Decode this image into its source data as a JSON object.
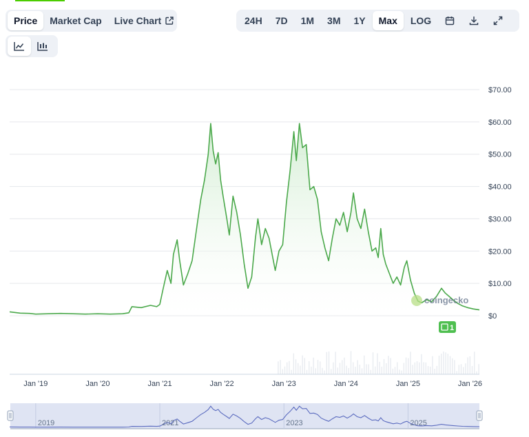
{
  "tabs": [
    {
      "label": "Price",
      "active": true
    },
    {
      "label": "Market Cap",
      "active": false
    },
    {
      "label": "Live Chart",
      "active": false,
      "icon": "external-link-icon"
    }
  ],
  "chart_type_buttons": [
    {
      "icon": "line-chart-icon",
      "active": true
    },
    {
      "icon": "candlestick-icon",
      "active": false
    }
  ],
  "ranges": [
    {
      "label": "24H",
      "active": false
    },
    {
      "label": "7D",
      "active": false
    },
    {
      "label": "1M",
      "active": false
    },
    {
      "label": "3M",
      "active": false
    },
    {
      "label": "1Y",
      "active": false
    },
    {
      "label": "Max",
      "active": true
    },
    {
      "label": "LOG",
      "active": false
    }
  ],
  "tool_icons": [
    "calendar-icon",
    "download-icon",
    "expand-icon"
  ],
  "watermark": "coingecko",
  "event_badge": "1",
  "colors": {
    "line": "#4aa84a",
    "fill_top": "#cfeccf",
    "navigator": "#5b6bbf",
    "navigator_bg": "#dfe4f3"
  },
  "chart_data": {
    "type": "area",
    "y_ticks": [
      "$0",
      "$10.00",
      "$20.00",
      "$30.00",
      "$40.00",
      "$50.00",
      "$60.00",
      "$70.00"
    ],
    "ylim": [
      0,
      70
    ],
    "x_ticks": [
      "Jan '19",
      "Jan '20",
      "Jan '21",
      "Jan '22",
      "Jan '23",
      "Jan '24",
      "Jan '25",
      "Jan '26"
    ],
    "x_tick_years": [
      2019,
      2020,
      2021,
      2022,
      2023,
      2024,
      2025,
      2026
    ],
    "xlim": [
      2018.58,
      2026.15
    ],
    "navigator_labels": [
      "2019",
      "2021",
      "2023",
      "2025"
    ],
    "navigator_years": [
      2019,
      2021,
      2023,
      2025
    ],
    "grid": true,
    "series": [
      {
        "values": [
          [
            2018.58,
            1.2
          ],
          [
            2018.75,
            0.8
          ],
          [
            2018.9,
            0.7
          ],
          [
            2019.0,
            0.5
          ],
          [
            2019.2,
            0.6
          ],
          [
            2019.4,
            0.7
          ],
          [
            2019.6,
            0.6
          ],
          [
            2019.8,
            0.5
          ],
          [
            2020.0,
            0.6
          ],
          [
            2020.2,
            0.5
          ],
          [
            2020.4,
            0.6
          ],
          [
            2020.5,
            0.9
          ],
          [
            2020.55,
            2.8
          ],
          [
            2020.7,
            2.5
          ],
          [
            2020.85,
            3.2
          ],
          [
            2020.95,
            2.8
          ],
          [
            2021.0,
            3.5
          ],
          [
            2021.05,
            8.0
          ],
          [
            2021.12,
            14.0
          ],
          [
            2021.18,
            10.0
          ],
          [
            2021.22,
            19.0
          ],
          [
            2021.28,
            23.5
          ],
          [
            2021.32,
            17.0
          ],
          [
            2021.38,
            9.5
          ],
          [
            2021.45,
            13.0
          ],
          [
            2021.52,
            17.0
          ],
          [
            2021.6,
            28.0
          ],
          [
            2021.66,
            36.0
          ],
          [
            2021.72,
            42.0
          ],
          [
            2021.78,
            50.0
          ],
          [
            2021.82,
            59.5
          ],
          [
            2021.86,
            51.0
          ],
          [
            2021.9,
            47.0
          ],
          [
            2021.94,
            50.5
          ],
          [
            2021.98,
            42.0
          ],
          [
            2022.02,
            37.0
          ],
          [
            2022.08,
            30.0
          ],
          [
            2022.12,
            25.0
          ],
          [
            2022.18,
            37.0
          ],
          [
            2022.24,
            32.0
          ],
          [
            2022.3,
            25.0
          ],
          [
            2022.36,
            16.0
          ],
          [
            2022.42,
            8.5
          ],
          [
            2022.48,
            12.0
          ],
          [
            2022.54,
            24.0
          ],
          [
            2022.58,
            30.0
          ],
          [
            2022.64,
            22.0
          ],
          [
            2022.7,
            27.0
          ],
          [
            2022.76,
            24.0
          ],
          [
            2022.82,
            18.0
          ],
          [
            2022.86,
            14.0
          ],
          [
            2022.92,
            20.0
          ],
          [
            2022.98,
            22.0
          ],
          [
            2023.04,
            35.0
          ],
          [
            2023.1,
            45.0
          ],
          [
            2023.16,
            57.0
          ],
          [
            2023.2,
            48.0
          ],
          [
            2023.25,
            59.5
          ],
          [
            2023.3,
            52.0
          ],
          [
            2023.36,
            53.0
          ],
          [
            2023.42,
            39.0
          ],
          [
            2023.48,
            40.0
          ],
          [
            2023.54,
            36.0
          ],
          [
            2023.6,
            26.0
          ],
          [
            2023.66,
            21.0
          ],
          [
            2023.72,
            17.0
          ],
          [
            2023.78,
            24.0
          ],
          [
            2023.84,
            30.0
          ],
          [
            2023.9,
            28.0
          ],
          [
            2023.96,
            32.0
          ],
          [
            2024.02,
            26.0
          ],
          [
            2024.08,
            32.0
          ],
          [
            2024.12,
            38.0
          ],
          [
            2024.18,
            30.0
          ],
          [
            2024.24,
            27.0
          ],
          [
            2024.3,
            33.0
          ],
          [
            2024.36,
            26.0
          ],
          [
            2024.42,
            20.0
          ],
          [
            2024.48,
            21.0
          ],
          [
            2024.52,
            18.0
          ],
          [
            2024.56,
            27.0
          ],
          [
            2024.6,
            19.0
          ],
          [
            2024.64,
            16.0
          ],
          [
            2024.7,
            13.0
          ],
          [
            2024.76,
            10.0
          ],
          [
            2024.82,
            12.0
          ],
          [
            2024.88,
            9.5
          ],
          [
            2024.94,
            15.0
          ],
          [
            2024.98,
            17.0
          ],
          [
            2025.04,
            11.0
          ],
          [
            2025.1,
            7.0
          ],
          [
            2025.16,
            4.5
          ],
          [
            2025.22,
            4.0
          ],
          [
            2025.3,
            5.0
          ],
          [
            2025.38,
            4.3
          ],
          [
            2025.46,
            6.0
          ],
          [
            2025.54,
            8.5
          ],
          [
            2025.6,
            7.0
          ],
          [
            2025.66,
            6.0
          ],
          [
            2025.72,
            5.0
          ],
          [
            2025.8,
            3.8
          ],
          [
            2025.88,
            3.0
          ],
          [
            2025.96,
            2.5
          ],
          [
            2026.05,
            2.1
          ],
          [
            2026.15,
            1.8
          ]
        ]
      }
    ]
  }
}
